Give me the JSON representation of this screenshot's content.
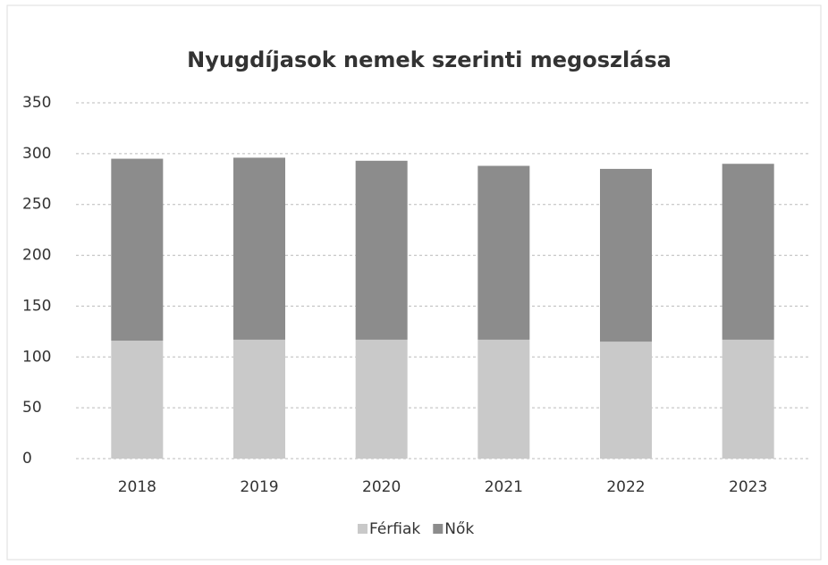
{
  "chart_data": {
    "type": "stacked_bar",
    "title": "Nyugdíjasok nemek szerinti megoszlása",
    "categories": [
      "2018",
      "2019",
      "2020",
      "2021",
      "2022",
      "2023"
    ],
    "series": [
      {
        "name": "Férfiak",
        "color": "#c9c9c9",
        "values": [
          116,
          117,
          117,
          117,
          115,
          117
        ]
      },
      {
        "name": "Nők",
        "color": "#8c8c8c",
        "values": [
          179,
          179,
          176,
          171,
          170,
          173
        ]
      }
    ],
    "ylim": [
      0,
      350
    ],
    "yticks": [
      0,
      50,
      100,
      150,
      200,
      250,
      300,
      350
    ],
    "grid": true,
    "legend": "bottom"
  }
}
